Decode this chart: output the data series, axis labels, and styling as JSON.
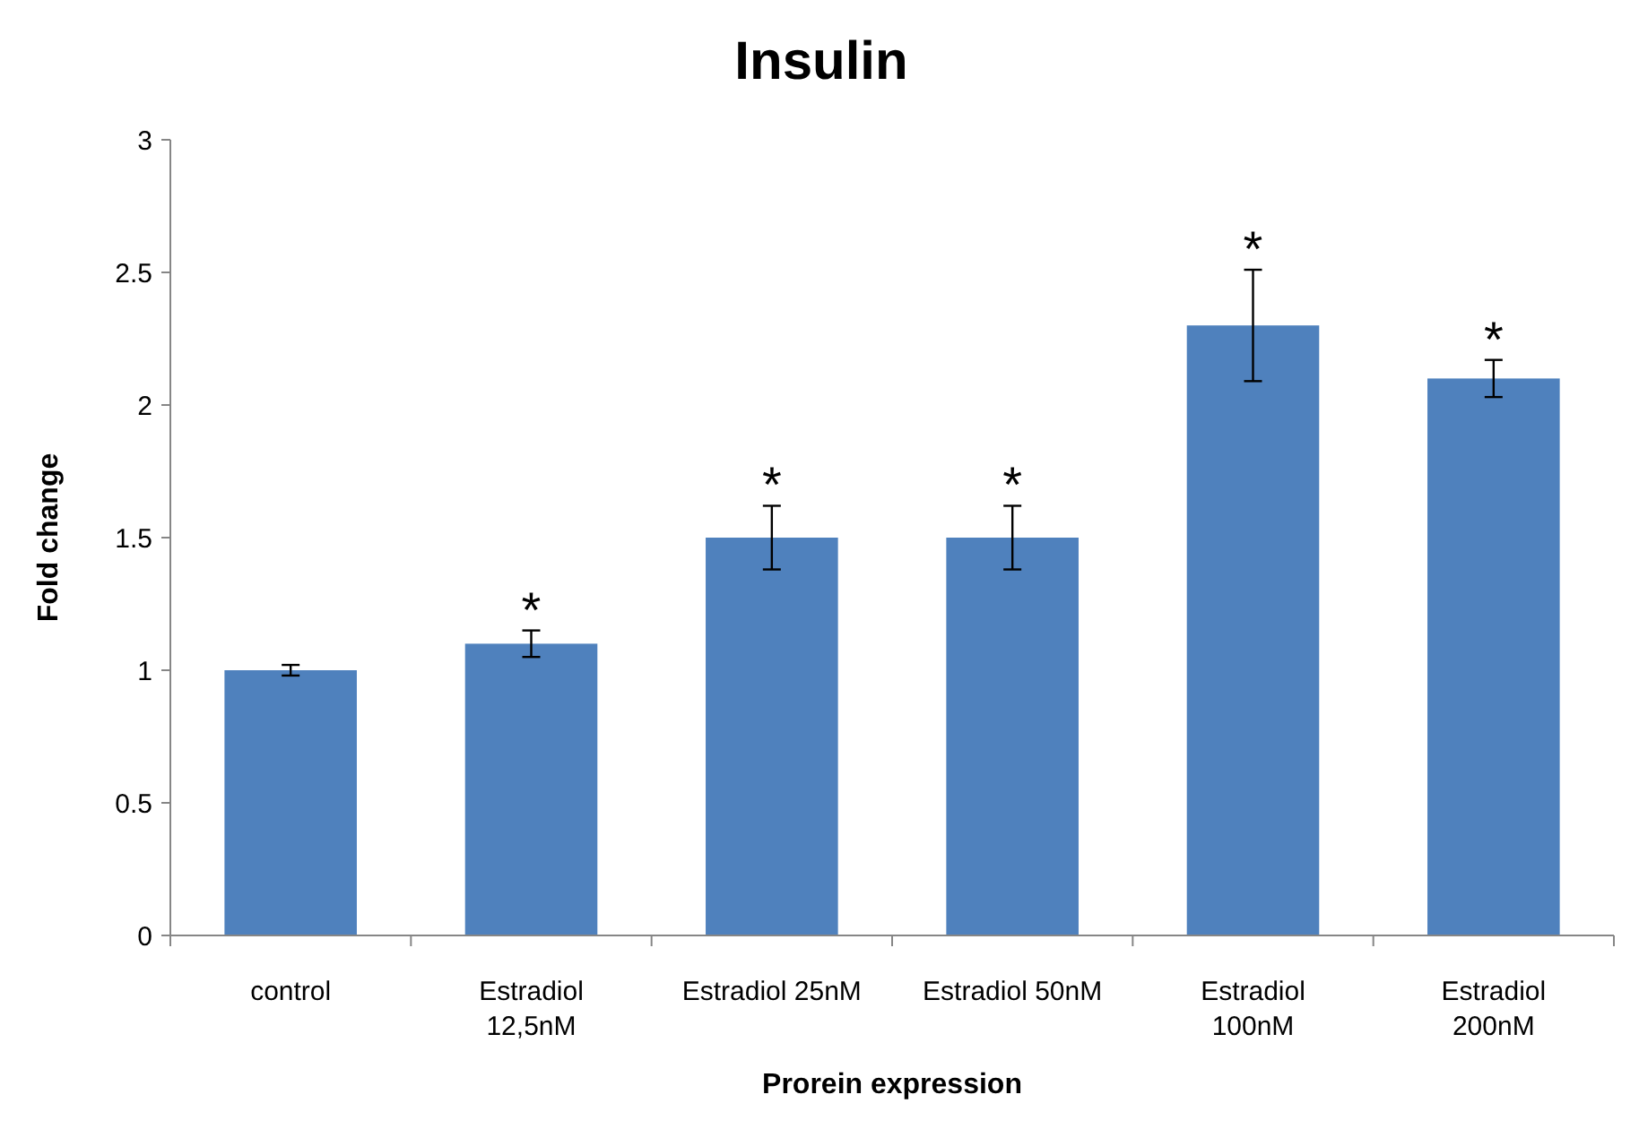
{
  "chart_data": {
    "type": "bar",
    "title": "Insulin",
    "xlabel": "Prorein expression",
    "ylabel": "Fold change",
    "categories": [
      "control",
      "Estradiol 12,5nM",
      "Estradiol 25nM",
      "Estradiol 50nM",
      "Estradiol 100nM",
      "Estradiol 200nM"
    ],
    "values": [
      1.0,
      1.1,
      1.5,
      1.5,
      2.3,
      2.1
    ],
    "errors": [
      0.02,
      0.05,
      0.12,
      0.12,
      0.21,
      0.07
    ],
    "color": "#4f81bd",
    "ylim": [
      0,
      3
    ],
    "yticks": [
      0,
      0.5,
      1,
      1.5,
      2,
      2.5,
      3
    ],
    "grid": false,
    "annotations": [
      {
        "text": "*",
        "x": "Estradiol 12,5nM",
        "y": 1.15
      },
      {
        "text": "*",
        "x": "Estradiol 25nM",
        "y": 1.62
      },
      {
        "text": "*",
        "x": "Estradiol 50nM",
        "y": 1.62
      },
      {
        "text": "*",
        "x": "Estradiol 100nM",
        "y": 2.51
      },
      {
        "text": "*",
        "x": "Estradiol 200nM",
        "y": 2.17
      }
    ]
  }
}
